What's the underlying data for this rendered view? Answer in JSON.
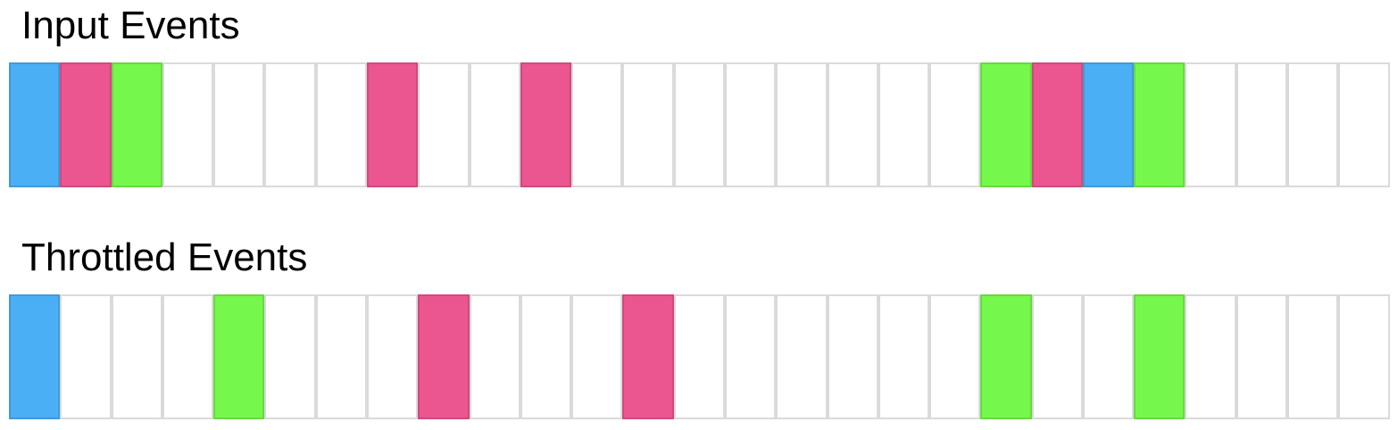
{
  "colors": {
    "empty": "#ffffff",
    "blue": "#4aaff5",
    "pink": "#eb5590",
    "green": "#76f74c",
    "grid": "#dadada"
  },
  "rows": [
    {
      "title": "Input Events",
      "cells": [
        "blue",
        "pink",
        "green",
        "empty",
        "empty",
        "empty",
        "empty",
        "pink",
        "empty",
        "empty",
        "pink",
        "empty",
        "empty",
        "empty",
        "empty",
        "empty",
        "empty",
        "empty",
        "empty",
        "green",
        "pink",
        "blue",
        "green",
        "empty",
        "empty",
        "empty",
        "empty"
      ]
    },
    {
      "title": "Throttled Events",
      "cells": [
        "blue",
        "empty",
        "empty",
        "empty",
        "green",
        "empty",
        "empty",
        "empty",
        "pink",
        "empty",
        "empty",
        "empty",
        "pink",
        "empty",
        "empty",
        "empty",
        "empty",
        "empty",
        "empty",
        "green",
        "empty",
        "empty",
        "green",
        "empty",
        "empty",
        "empty",
        "empty"
      ]
    }
  ]
}
